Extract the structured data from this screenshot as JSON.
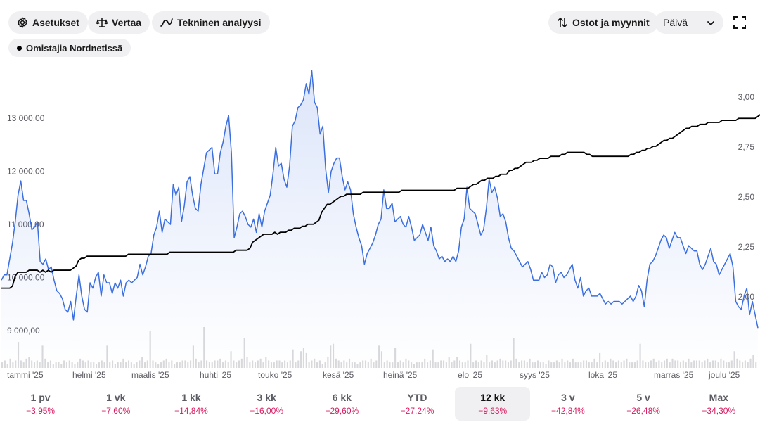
{
  "toolbar": {
    "settings_label": "Asetukset",
    "compare_label": "Vertaa",
    "technical_label": "Tekninen analyysi",
    "trades_label": "Ostot ja myynnit",
    "interval_value": "Päivä",
    "owners_label": "Omistajia Nordnetissä"
  },
  "icons": {
    "settings": "gear-icon",
    "compare": "scale-icon",
    "technical": "trend-line-icon",
    "trades": "up-down-arrows-icon",
    "interval": "chevron-down-icon",
    "expand": "fullscreen-icon"
  },
  "colors": {
    "price_line": "#3b6fe0",
    "owners_line": "#000000",
    "negative": "#d81b60",
    "volume": "#d9d9dc"
  },
  "chart_data": {
    "type": "line",
    "x_ticks": [
      "tammi '25",
      "helmi '25",
      "maalis '25",
      "huhti '25",
      "touko '25",
      "kesä '25",
      "heinä '25",
      "elo '25",
      "syys '25",
      "loka '25",
      "marras '25",
      "joulu '25"
    ],
    "left_axis": {
      "ticks": [
        "9 000,00",
        "10 000,00",
        "11 000,00",
        "12 000,00",
        "13 000,00"
      ],
      "range": [
        9000,
        13000
      ]
    },
    "right_axis": {
      "ticks": [
        "2,00",
        "2,25",
        "2,50",
        "2,75",
        "3,00"
      ],
      "range": [
        2.0,
        3.0
      ]
    },
    "series": [
      {
        "axis": "left",
        "values": [
          9950,
          10050,
          10050,
          10350,
          10650,
          11050,
          11550,
          11820,
          11450,
          11450,
          11200,
          10900,
          10950,
          11050,
          10300,
          10250,
          10350,
          10150,
          10200,
          9950,
          9750,
          9700,
          9600,
          9400,
          9350,
          9550,
          9200,
          9650,
          10050,
          9650,
          9400,
          9350,
          9900,
          9800,
          10000,
          10100,
          9650,
          10050,
          9900,
          9900,
          9700,
          9900,
          9800,
          9950,
          9650,
          9900,
          9950,
          9900,
          9950,
          10000,
          10250,
          10050,
          10200,
          10400,
          10450,
          10800,
          10950,
          11250,
          10850,
          11100,
          11050,
          11000,
          11750,
          11550,
          11700,
          11050,
          11350,
          11800,
          11900,
          11550,
          11300,
          11250,
          11750,
          12050,
          12350,
          12400,
          12450,
          11950,
          11950,
          12350,
          12550,
          12850,
          13050,
          12350,
          10750,
          10950,
          11200,
          11250,
          11150,
          11000,
          10950,
          11100,
          10850,
          11200,
          10950,
          11250,
          11400,
          11550,
          11950,
          12450,
          12100,
          12150,
          11850,
          11700,
          12100,
          12850,
          12950,
          13200,
          13250,
          13350,
          13650,
          13450,
          13900,
          13300,
          13200,
          12700,
          12850,
          12050,
          11600,
          12000,
          12150,
          12250,
          12250,
          11900,
          11650,
          11800,
          11650,
          11200,
          10950,
          10750,
          10600,
          10250,
          10450,
          10550,
          10650,
          10800,
          11000,
          11100,
          11650,
          11300,
          11300,
          11400,
          11050,
          11100,
          11150,
          11000,
          10950,
          11150,
          10950,
          10700,
          10750,
          10800,
          11000,
          10850,
          10700,
          10950,
          10600,
          10500,
          10350,
          10400,
          10300,
          10350,
          10300,
          10400,
          10300,
          10500,
          10950,
          11100,
          11700,
          11300,
          11250,
          11200,
          11000,
          10800,
          10900,
          11300,
          11850,
          11600,
          11700,
          11500,
          11150,
          11200,
          11050,
          10750,
          10550,
          10500,
          10400,
          10300,
          10200,
          10250,
          10300,
          10150,
          9950,
          9950,
          9950,
          10100,
          10000,
          10050,
          10250,
          10200,
          9900,
          10050,
          10100,
          10000,
          10050,
          10150,
          10250,
          9950,
          9800,
          10000,
          9650,
          9750,
          9800,
          9650,
          9650,
          9650,
          9700,
          9600,
          9500,
          9550,
          9500,
          9550,
          9550,
          9550,
          9500,
          9550,
          9600,
          9650,
          9550,
          9650,
          9850,
          9750,
          9450,
          9950,
          10250,
          10300,
          10400,
          10550,
          10700,
          10800,
          10750,
          10550,
          10700,
          10850,
          10750,
          10750,
          10600,
          10450,
          10600,
          10550,
          10500,
          10500,
          10250,
          10150,
          10250,
          10400,
          10550,
          10300,
          10250,
          10050,
          10150,
          10250,
          10350,
          10450,
          10200,
          9550,
          9450,
          9400,
          9650,
          9800,
          9300,
          9550,
          9300,
          9050
        ]
      },
      {
        "axis": "right",
        "values": [
          2.04,
          2.04,
          2.04,
          2.04,
          2.05,
          2.1,
          2.12,
          2.12,
          2.12,
          2.12,
          2.13,
          2.13,
          2.13,
          2.13,
          2.12,
          2.13,
          2.12,
          2.13,
          2.12,
          2.13,
          2.13,
          2.13,
          2.13,
          2.13,
          2.13,
          2.13,
          2.14,
          2.15,
          2.18,
          2.19,
          2.19,
          2.2,
          2.2,
          2.2,
          2.2,
          2.2,
          2.2,
          2.2,
          2.2,
          2.2,
          2.2,
          2.2,
          2.2,
          2.2,
          2.2,
          2.2,
          2.21,
          2.21,
          2.21,
          2.21,
          2.21,
          2.21,
          2.21,
          2.21,
          2.21,
          2.21,
          2.21,
          2.21,
          2.21,
          2.21,
          2.21,
          2.22,
          2.22,
          2.22,
          2.22,
          2.22,
          2.22,
          2.22,
          2.22,
          2.22,
          2.22,
          2.22,
          2.22,
          2.22,
          2.22,
          2.22,
          2.22,
          2.22,
          2.22,
          2.22,
          2.22,
          2.22,
          2.22,
          2.22,
          2.22,
          2.23,
          2.23,
          2.23,
          2.23,
          2.23,
          2.24,
          2.27,
          2.28,
          2.29,
          2.3,
          2.31,
          2.31,
          2.31,
          2.31,
          2.32,
          2.31,
          2.32,
          2.32,
          2.32,
          2.33,
          2.33,
          2.34,
          2.34,
          2.34,
          2.35,
          2.35,
          2.36,
          2.36,
          2.36,
          2.37,
          2.38,
          2.42,
          2.44,
          2.46,
          2.46,
          2.47,
          2.48,
          2.49,
          2.5,
          2.5,
          2.51,
          2.51,
          2.51,
          2.51,
          2.51,
          2.51,
          2.52,
          2.52,
          2.52,
          2.52,
          2.52,
          2.52,
          2.52,
          2.52,
          2.52,
          2.52,
          2.52,
          2.52,
          2.52,
          2.52,
          2.53,
          2.53,
          2.53,
          2.53,
          2.53,
          2.53,
          2.53,
          2.53,
          2.53,
          2.53,
          2.53,
          2.53,
          2.53,
          2.53,
          2.53,
          2.53,
          2.53,
          2.53,
          2.53,
          2.53,
          2.54,
          2.54,
          2.54,
          2.54,
          2.54,
          2.55,
          2.56,
          2.56,
          2.57,
          2.58,
          2.58,
          2.59,
          2.59,
          2.59,
          2.6,
          2.6,
          2.61,
          2.61,
          2.61,
          2.63,
          2.63,
          2.64,
          2.64,
          2.65,
          2.66,
          2.67,
          2.67,
          2.67,
          2.68,
          2.68,
          2.69,
          2.69,
          2.69,
          2.69,
          2.7,
          2.7,
          2.7,
          2.7,
          2.71,
          2.71,
          2.72,
          2.72,
          2.72,
          2.72,
          2.72,
          2.72,
          2.72,
          2.71,
          2.71,
          2.7,
          2.7,
          2.7,
          2.7,
          2.7,
          2.7,
          2.7,
          2.7,
          2.7,
          2.7,
          2.7,
          2.7,
          2.7,
          2.7,
          2.71,
          2.71,
          2.72,
          2.72,
          2.73,
          2.73,
          2.74,
          2.74,
          2.75,
          2.75,
          2.76,
          2.77,
          2.78,
          2.78,
          2.79,
          2.79,
          2.8,
          2.81,
          2.82,
          2.83,
          2.84,
          2.84,
          2.85,
          2.85,
          2.85,
          2.86,
          2.86,
          2.86,
          2.87,
          2.87,
          2.87,
          2.87,
          2.87,
          2.88,
          2.88,
          2.88,
          2.88,
          2.88,
          2.88,
          2.89,
          2.89,
          2.89,
          2.89,
          2.89,
          2.89,
          2.89,
          2.9,
          2.91
        ]
      }
    ],
    "volume_relative": [
      3,
      4,
      2,
      5,
      3,
      4,
      14,
      4,
      3,
      5,
      6,
      4,
      3,
      4,
      3,
      12,
      5,
      3,
      4,
      2,
      3,
      3,
      2,
      4,
      3,
      4,
      3,
      2,
      3,
      5,
      4,
      3,
      4,
      3,
      3,
      2,
      3,
      4,
      3,
      12,
      3,
      4,
      2,
      3,
      3,
      5,
      3,
      4,
      3,
      2,
      3,
      4,
      6,
      3,
      4,
      20,
      4,
      3,
      2,
      3,
      4,
      5,
      3,
      4,
      2,
      3,
      3,
      4,
      4,
      3,
      4,
      12,
      5,
      3,
      4,
      22,
      4,
      3,
      3,
      4,
      4,
      5,
      3,
      4,
      3,
      9,
      4,
      3,
      4,
      5,
      16,
      6,
      3,
      4,
      3,
      4,
      5,
      3,
      6,
      4,
      3,
      3,
      4,
      4,
      3,
      4,
      3,
      4,
      10,
      3,
      4,
      9,
      11,
      8,
      3,
      4,
      5,
      3,
      4,
      2,
      3,
      6,
      12,
      13,
      5,
      4,
      3,
      4,
      3,
      5,
      3,
      3,
      2,
      3,
      4,
      4,
      3,
      5,
      3,
      4,
      12,
      9,
      3,
      4,
      3,
      3,
      11,
      3,
      4,
      3,
      5,
      4,
      3,
      2,
      3,
      3,
      3,
      5,
      3,
      4,
      10,
      3,
      3,
      4,
      4,
      3,
      6,
      3,
      4,
      6,
      4,
      3,
      3,
      4,
      13,
      3,
      4,
      3,
      4,
      3,
      7,
      3,
      4,
      3,
      4,
      5,
      4,
      4,
      3,
      4,
      16,
      5,
      3,
      4,
      4,
      3,
      5,
      3,
      3,
      4,
      3,
      3,
      2,
      4,
      3,
      3,
      4,
      3,
      5,
      3,
      4,
      3,
      5,
      3,
      3,
      3,
      4,
      4,
      3,
      3,
      5,
      3,
      8,
      3,
      4,
      3,
      5,
      4,
      3,
      4,
      3,
      4,
      5,
      3,
      3,
      3,
      4,
      13,
      4,
      3,
      3,
      4,
      5,
      3,
      4,
      3,
      4,
      5,
      3,
      5,
      4,
      4,
      3,
      4,
      3,
      5,
      3,
      4,
      4,
      4,
      3,
      4,
      5,
      3,
      4,
      4,
      3,
      5,
      4,
      3,
      3,
      4,
      9,
      5,
      4,
      3,
      4,
      3,
      5,
      7,
      3
    ]
  },
  "periods": [
    {
      "label": "1 pv",
      "value": "−3,95%"
    },
    {
      "label": "1 vk",
      "value": "−7,60%"
    },
    {
      "label": "1 kk",
      "value": "−14,84%"
    },
    {
      "label": "3 kk",
      "value": "−16,00%"
    },
    {
      "label": "6 kk",
      "value": "−29,60%"
    },
    {
      "label": "YTD",
      "value": "−27,24%"
    },
    {
      "label": "12 kk",
      "value": "−9,63%"
    },
    {
      "label": "3 v",
      "value": "−42,84%"
    },
    {
      "label": "5 v",
      "value": "−26,48%"
    },
    {
      "label": "Max",
      "value": "−34,30%"
    }
  ],
  "active_period": "12 kk"
}
